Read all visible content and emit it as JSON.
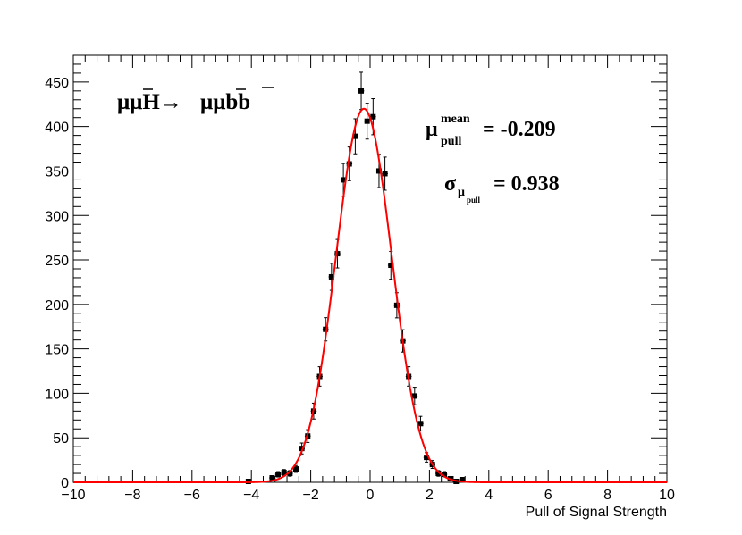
{
  "chart_data": {
    "type": "scatter",
    "title": "",
    "xlabel": "Pull of Signal Strength",
    "ylabel": "",
    "xlim": [
      -10,
      10
    ],
    "ylim": [
      0,
      480
    ],
    "x_ticks": [
      "−10",
      "−8",
      "−6",
      "−4",
      "−2",
      "0",
      "2",
      "4",
      "6",
      "8",
      "10"
    ],
    "y_ticks": [
      "0",
      "50",
      "100",
      "150",
      "200",
      "250",
      "300",
      "350",
      "400",
      "450"
    ],
    "grid": false,
    "legend": "none",
    "colors": {
      "data": "#000000",
      "fit": "#ff0000",
      "frame": "#000000"
    },
    "annotations": {
      "process": {
        "lhs": "μμH→",
        "rhs": "μμbb"
      },
      "mean": {
        "symbol": "μ",
        "sup": "mean",
        "sub": "pull",
        "value": "= -0.209"
      },
      "sigma": {
        "symbol": "σ",
        "sub": "μ",
        "subsub": "pull",
        "value": "= 0.938"
      }
    },
    "fit": {
      "function": "gaussian",
      "mean": -0.209,
      "sigma": 0.938,
      "amplitude": 420
    },
    "series": [
      {
        "type": "histogram-points",
        "points": [
          {
            "x": -4.1,
            "y": 1
          },
          {
            "x": -3.3,
            "y": 5
          },
          {
            "x": -3.1,
            "y": 9
          },
          {
            "x": -2.9,
            "y": 11
          },
          {
            "x": -2.7,
            "y": 10
          },
          {
            "x": -2.5,
            "y": 15
          },
          {
            "x": -2.3,
            "y": 38
          },
          {
            "x": -2.1,
            "y": 52
          },
          {
            "x": -1.9,
            "y": 80
          },
          {
            "x": -1.7,
            "y": 119
          },
          {
            "x": -1.5,
            "y": 172
          },
          {
            "x": -1.3,
            "y": 231
          },
          {
            "x": -1.1,
            "y": 257
          },
          {
            "x": -0.9,
            "y": 340
          },
          {
            "x": -0.7,
            "y": 358
          },
          {
            "x": -0.5,
            "y": 389
          },
          {
            "x": -0.3,
            "y": 440
          },
          {
            "x": -0.1,
            "y": 406
          },
          {
            "x": 0.1,
            "y": 411
          },
          {
            "x": 0.3,
            "y": 350
          },
          {
            "x": 0.5,
            "y": 347
          },
          {
            "x": 0.7,
            "y": 244
          },
          {
            "x": 0.9,
            "y": 199
          },
          {
            "x": 1.1,
            "y": 159
          },
          {
            "x": 1.3,
            "y": 119
          },
          {
            "x": 1.5,
            "y": 97
          },
          {
            "x": 1.7,
            "y": 66
          },
          {
            "x": 1.9,
            "y": 28
          },
          {
            "x": 2.1,
            "y": 20
          },
          {
            "x": 2.3,
            "y": 10
          },
          {
            "x": 2.5,
            "y": 9
          },
          {
            "x": 2.7,
            "y": 4
          },
          {
            "x": 2.9,
            "y": 1
          },
          {
            "x": 3.1,
            "y": 3
          }
        ]
      }
    ]
  }
}
